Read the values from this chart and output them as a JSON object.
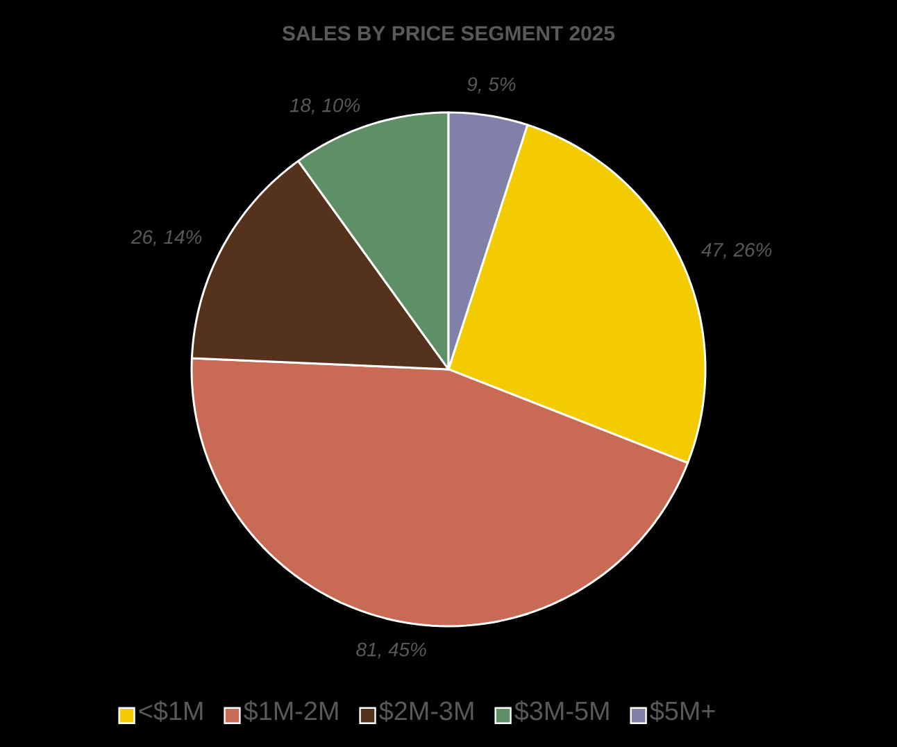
{
  "chart_data": {
    "type": "pie",
    "title": "SALES BY PRICE SEGMENT 2025",
    "categories": [
      "<$1M",
      "$1M-2M",
      "$2M-3M",
      "$3M-5M",
      "$5M+"
    ],
    "values": [
      47,
      81,
      26,
      18,
      9
    ],
    "colors": [
      "#f2cc00",
      "#c96a55",
      "#55321b",
      "#5f8f66",
      "#8080a8"
    ],
    "value_labels": [
      "47, 26%",
      "81, 45%",
      "26, 14%",
      "18, 10%",
      "9, 5%"
    ],
    "legend": "bottom"
  }
}
